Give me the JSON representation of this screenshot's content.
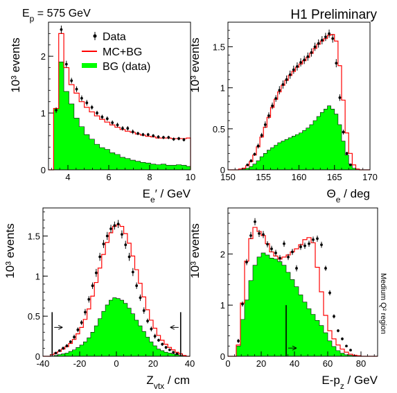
{
  "header": {
    "beam_label": "E_p = 575 GeV",
    "tag": "H1 Preliminary"
  },
  "side_note": "Medium Q² region",
  "legend": {
    "data": "Data",
    "mc": "MC+BG",
    "bg": "BG (data)"
  },
  "colors": {
    "bg_fill": "#00ff00",
    "mc_line": "#ff0000",
    "data": "#000000",
    "frame": "#000000"
  },
  "chart_data": [
    {
      "type": "histogram",
      "id": "ee",
      "xlabel": "E_e′ / GeV",
      "ylabel": "10³ events",
      "xlim": [
        3.05,
        10
      ],
      "ylim": [
        0,
        2.6
      ],
      "xticks": [
        4,
        6,
        8,
        10
      ],
      "yticks": [
        0,
        1,
        2
      ],
      "edges": [
        3.05,
        3.3,
        3.55,
        3.8,
        4.05,
        4.3,
        4.55,
        4.8,
        5.05,
        5.3,
        5.55,
        5.8,
        6.05,
        6.3,
        6.55,
        6.8,
        7.05,
        7.3,
        7.55,
        7.8,
        8.05,
        8.3,
        8.55,
        8.8,
        9.05,
        9.3,
        9.55,
        9.8,
        10
      ],
      "bg": [
        0.0,
        1.08,
        1.9,
        1.38,
        1.16,
        0.91,
        0.76,
        0.62,
        0.54,
        0.45,
        0.39,
        0.36,
        0.3,
        0.27,
        0.22,
        0.2,
        0.17,
        0.15,
        0.13,
        0.12,
        0.1,
        0.09,
        0.1,
        0.08,
        0.08,
        0.09,
        0.08,
        0.06
      ],
      "mc": [
        0.0,
        1.08,
        2.4,
        1.8,
        1.5,
        1.35,
        1.2,
        1.1,
        1.02,
        0.95,
        0.89,
        0.84,
        0.79,
        0.75,
        0.71,
        0.68,
        0.66,
        0.63,
        0.61,
        0.59,
        0.58,
        0.56,
        0.56,
        0.56,
        0.55,
        0.55,
        0.55,
        0.56
      ],
      "data_x": [
        3.425,
        3.675,
        3.925,
        4.175,
        4.425,
        4.675,
        4.925,
        5.175,
        5.425,
        5.675,
        5.925,
        6.175,
        6.425,
        6.675,
        6.925,
        7.175,
        7.425,
        7.675,
        7.925,
        8.175,
        8.425,
        8.675,
        8.925,
        9.175,
        9.425,
        9.675
      ],
      "data_y": [
        1.05,
        2.47,
        1.86,
        1.57,
        1.42,
        1.26,
        1.18,
        1.1,
        1.0,
        0.93,
        0.9,
        0.83,
        0.79,
        0.73,
        0.73,
        0.67,
        0.64,
        0.62,
        0.62,
        0.6,
        0.58,
        0.57,
        0.57,
        0.54,
        0.55,
        0.53
      ],
      "data_err": [
        0.05,
        0.07,
        0.06,
        0.05,
        0.05,
        0.05,
        0.05,
        0.04,
        0.04,
        0.04,
        0.04,
        0.04,
        0.04,
        0.04,
        0.04,
        0.04,
        0.03,
        0.03,
        0.03,
        0.03,
        0.03,
        0.03,
        0.03,
        0.03,
        0.03,
        0.03
      ]
    },
    {
      "type": "histogram",
      "id": "theta",
      "xlabel": "Θ_e / deg",
      "ylabel": "10³ events",
      "xlim": [
        150,
        170
      ],
      "ylim": [
        0,
        1.8
      ],
      "xticks": [
        150,
        155,
        160,
        165,
        170
      ],
      "yticks": [
        0,
        0.5,
        1,
        1.5
      ],
      "edges": [
        150.0,
        150.5,
        151.0,
        151.5,
        152.0,
        152.5,
        153.0,
        153.5,
        154.0,
        154.5,
        155.0,
        155.5,
        156.0,
        156.5,
        157.0,
        157.5,
        158.0,
        158.5,
        159.0,
        159.5,
        160.0,
        160.5,
        161.0,
        161.5,
        162.0,
        162.5,
        163.0,
        163.5,
        164.0,
        164.5,
        165.0,
        165.5,
        166.0,
        166.5,
        167.0,
        167.5,
        168.0,
        168.5,
        169.0,
        169.5,
        170.0
      ],
      "bg": [
        0.0,
        0.0,
        0.0,
        0.0,
        0.01,
        0.02,
        0.04,
        0.07,
        0.11,
        0.16,
        0.2,
        0.24,
        0.27,
        0.3,
        0.33,
        0.35,
        0.37,
        0.39,
        0.41,
        0.43,
        0.45,
        0.48,
        0.51,
        0.55,
        0.6,
        0.65,
        0.7,
        0.74,
        0.78,
        0.74,
        0.68,
        0.55,
        0.35,
        0.18,
        0.07,
        0.02,
        0.0,
        0.0,
        0.0,
        0.0
      ],
      "mc": [
        0.0,
        0.0,
        0.0,
        0.01,
        0.02,
        0.05,
        0.1,
        0.18,
        0.28,
        0.4,
        0.52,
        0.64,
        0.76,
        0.86,
        0.95,
        1.03,
        1.09,
        1.15,
        1.2,
        1.25,
        1.29,
        1.33,
        1.37,
        1.42,
        1.48,
        1.53,
        1.57,
        1.6,
        1.64,
        1.65,
        1.57,
        1.27,
        0.85,
        0.45,
        0.2,
        0.06,
        0.01,
        0.0,
        0.0,
        0.0
      ],
      "data_x": [
        152.75,
        153.25,
        153.75,
        154.25,
        154.75,
        155.25,
        155.75,
        156.25,
        156.75,
        157.25,
        157.75,
        158.25,
        158.75,
        159.25,
        159.75,
        160.25,
        160.75,
        161.25,
        161.75,
        162.25,
        162.75,
        163.25,
        163.75,
        164.25,
        164.75,
        165.25,
        165.75,
        166.25,
        166.75,
        167.25
      ],
      "data_y": [
        0.06,
        0.11,
        0.19,
        0.29,
        0.42,
        0.55,
        0.66,
        0.78,
        0.87,
        0.97,
        1.04,
        1.1,
        1.16,
        1.22,
        1.26,
        1.31,
        1.34,
        1.38,
        1.43,
        1.5,
        1.54,
        1.58,
        1.62,
        1.66,
        1.6,
        1.3,
        0.88,
        0.46,
        0.2,
        0.06
      ],
      "data_err": [
        0.01,
        0.02,
        0.02,
        0.03,
        0.03,
        0.04,
        0.04,
        0.04,
        0.04,
        0.05,
        0.05,
        0.05,
        0.05,
        0.05,
        0.05,
        0.05,
        0.05,
        0.05,
        0.05,
        0.05,
        0.05,
        0.05,
        0.05,
        0.05,
        0.05,
        0.05,
        0.04,
        0.03,
        0.02,
        0.01
      ]
    },
    {
      "type": "histogram",
      "id": "zvtx",
      "xlabel": "Z_vtx / cm",
      "ylabel": "10³ events",
      "xlim": [
        -40,
        40
      ],
      "ylim": [
        0,
        1.85
      ],
      "xticks": [
        -40,
        -20,
        0,
        20,
        40
      ],
      "yticks": [
        0,
        0.5,
        1,
        1.5
      ],
      "cut_lines": [
        -35,
        35
      ],
      "edges": [
        -40,
        -38,
        -36,
        -34,
        -32,
        -30,
        -28,
        -26,
        -24,
        -22,
        -20,
        -18,
        -16,
        -14,
        -12,
        -10,
        -8,
        -6,
        -4,
        -2,
        0,
        2,
        4,
        6,
        8,
        10,
        12,
        14,
        16,
        18,
        20,
        22,
        24,
        26,
        28,
        30,
        32,
        34,
        36,
        38,
        40
      ],
      "bg": [
        0.0,
        0.0,
        0.0,
        0.01,
        0.02,
        0.03,
        0.04,
        0.06,
        0.08,
        0.11,
        0.14,
        0.18,
        0.23,
        0.3,
        0.38,
        0.47,
        0.56,
        0.64,
        0.7,
        0.73,
        0.72,
        0.7,
        0.66,
        0.6,
        0.53,
        0.45,
        0.38,
        0.31,
        0.24,
        0.18,
        0.13,
        0.09,
        0.07,
        0.05,
        0.04,
        0.03,
        0.02,
        0.01,
        0.0,
        0.0
      ],
      "mc": [
        0.0,
        0.0,
        0.02,
        0.04,
        0.06,
        0.09,
        0.12,
        0.16,
        0.21,
        0.28,
        0.36,
        0.46,
        0.59,
        0.75,
        0.92,
        1.1,
        1.27,
        1.42,
        1.54,
        1.62,
        1.64,
        1.62,
        1.53,
        1.41,
        1.25,
        1.08,
        0.91,
        0.74,
        0.58,
        0.45,
        0.35,
        0.26,
        0.2,
        0.15,
        0.11,
        0.08,
        0.05,
        0.03,
        0.01,
        0.0
      ],
      "data_x": [
        -33,
        -31,
        -29,
        -27,
        -25,
        -23,
        -21,
        -19,
        -17,
        -15,
        -13,
        -11,
        -9,
        -7,
        -5,
        -3,
        -1,
        1,
        3,
        5,
        7,
        9,
        11,
        13,
        15,
        17,
        19,
        21,
        23,
        25,
        27,
        29,
        31,
        33
      ],
      "data_y": [
        0.04,
        0.07,
        0.1,
        0.13,
        0.18,
        0.24,
        0.33,
        0.42,
        0.55,
        0.71,
        0.88,
        1.04,
        1.24,
        1.4,
        1.5,
        1.59,
        1.63,
        1.65,
        1.52,
        1.39,
        1.24,
        1.05,
        0.88,
        0.73,
        0.57,
        0.44,
        0.34,
        0.25,
        0.2,
        0.15,
        0.11,
        0.08,
        0.05,
        0.03
      ],
      "data_err": [
        0.01,
        0.01,
        0.02,
        0.02,
        0.02,
        0.03,
        0.03,
        0.03,
        0.04,
        0.04,
        0.04,
        0.05,
        0.05,
        0.05,
        0.05,
        0.05,
        0.05,
        0.05,
        0.05,
        0.05,
        0.05,
        0.05,
        0.04,
        0.04,
        0.04,
        0.03,
        0.03,
        0.03,
        0.02,
        0.02,
        0.02,
        0.01,
        0.01,
        0.01
      ]
    },
    {
      "type": "histogram",
      "id": "epz",
      "xlabel": "E-p_z / GeV",
      "ylabel": "10³ events",
      "xlim": [
        0,
        90
      ],
      "ylim": [
        0,
        2.9
      ],
      "xticks": [
        0,
        20,
        40,
        60,
        80
      ],
      "yticks": [
        0,
        1,
        2
      ],
      "cut_lines": [
        35
      ],
      "edges": [
        0,
        2.5,
        5.0,
        7.5,
        10.0,
        12.5,
        15.0,
        17.5,
        20.0,
        22.5,
        25.0,
        27.5,
        30.0,
        32.5,
        35.0,
        37.5,
        40.0,
        42.5,
        45.0,
        47.5,
        50.0,
        52.5,
        55.0,
        57.5,
        60.0,
        62.5,
        65.0,
        67.5,
        70.0,
        72.5,
        75.0,
        77.5,
        80.0,
        82.5,
        85.0,
        87.5,
        90.0
      ],
      "bg": [
        0.0,
        0.0,
        0.2,
        0.72,
        1.1,
        1.48,
        1.78,
        1.94,
        2.02,
        1.98,
        1.92,
        1.9,
        1.85,
        1.78,
        1.64,
        1.5,
        1.36,
        1.2,
        1.06,
        0.93,
        0.82,
        0.7,
        0.6,
        0.46,
        0.3,
        0.19,
        0.11,
        0.06,
        0.03,
        0.02,
        0.01,
        0.0,
        0.0,
        0.0,
        0.0,
        0.0
      ],
      "mc": [
        0.0,
        0.0,
        0.22,
        1.04,
        1.86,
        2.3,
        2.52,
        2.44,
        2.36,
        2.2,
        2.04,
        1.96,
        1.9,
        1.94,
        1.98,
        2.04,
        2.1,
        2.18,
        2.28,
        2.32,
        2.22,
        1.74,
        1.26,
        0.8,
        0.5,
        0.34,
        0.22,
        0.14,
        0.08,
        0.04,
        0.02,
        0.01,
        0.0,
        0.0,
        0.0,
        0.0
      ],
      "data_x": [
        6.25,
        8.75,
        11.25,
        13.75,
        16.25,
        18.75,
        21.25,
        23.75,
        26.25,
        28.75,
        31.25,
        33.75,
        36.25,
        38.75,
        41.25,
        43.75,
        46.25,
        48.75,
        51.25,
        53.75,
        56.25,
        58.75,
        61.25,
        63.75,
        66.25,
        68.75,
        71.25,
        73.75
      ],
      "data_y": [
        0.3,
        1.02,
        1.84,
        2.36,
        2.63,
        2.4,
        2.38,
        2.19,
        2.1,
        2.02,
        1.92,
        2.2,
        1.94,
        2.04,
        1.72,
        2.14,
        2.16,
        2.2,
        2.28,
        2.3,
        2.18,
        1.72,
        1.24,
        0.78,
        0.5,
        0.34,
        0.2,
        0.12
      ],
      "data_err": [
        0.04,
        0.05,
        0.06,
        0.07,
        0.07,
        0.07,
        0.07,
        0.06,
        0.06,
        0.06,
        0.06,
        0.06,
        0.06,
        0.06,
        0.06,
        0.06,
        0.06,
        0.06,
        0.06,
        0.06,
        0.06,
        0.05,
        0.05,
        0.04,
        0.03,
        0.03,
        0.02,
        0.02
      ]
    }
  ]
}
